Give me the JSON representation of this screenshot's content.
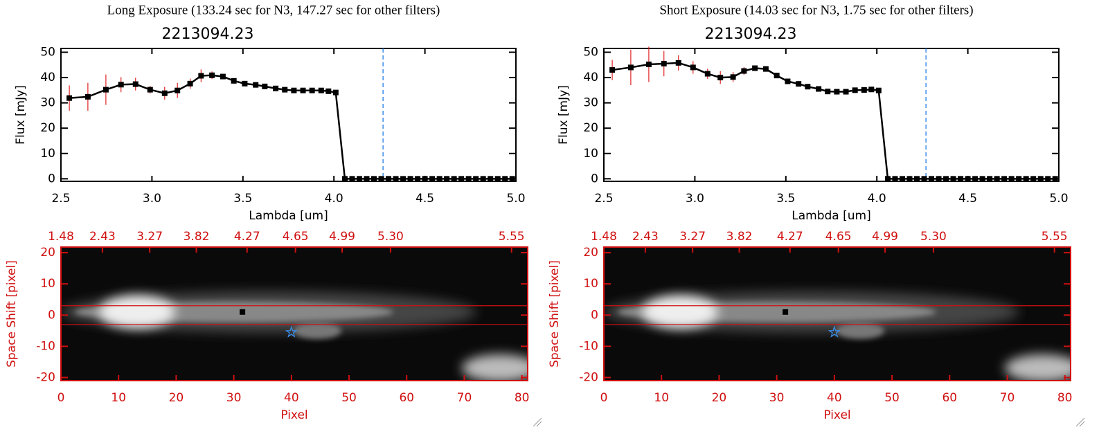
{
  "chart_data": [
    {
      "type": "spectrum",
      "heading": "Long Exposure (133.24 sec for N3, 147.27 sec for other filters)",
      "title": "2213094.23",
      "xlabel": "Lambda [um]",
      "ylabel": "Flux [mJy]",
      "x": [
        2.546,
        2.648,
        2.747,
        2.83,
        2.91,
        2.99,
        3.07,
        3.14,
        3.21,
        3.27,
        3.33,
        3.39,
        3.45,
        3.51,
        3.57,
        3.62,
        3.68,
        3.73,
        3.78,
        3.83,
        3.88,
        3.93,
        3.97,
        4.01,
        4.06,
        4.1,
        4.14,
        4.18,
        4.22,
        4.26,
        4.3,
        4.34,
        4.38,
        4.42,
        4.46,
        4.5,
        4.54,
        4.58,
        4.62,
        4.66,
        4.7,
        4.74,
        4.78,
        4.82,
        4.86,
        4.9,
        4.94,
        4.98
      ],
      "values": [
        31.9,
        32.4,
        35.2,
        37.2,
        37.4,
        35.2,
        33.8,
        34.9,
        37.6,
        40.7,
        40.9,
        40.4,
        38.7,
        37.6,
        37.1,
        36.5,
        35.7,
        35.2,
        34.9,
        34.9,
        34.9,
        34.9,
        34.6,
        34.1,
        0,
        0,
        0,
        0,
        0,
        0,
        0,
        0,
        0,
        0,
        0,
        0,
        0,
        0,
        0,
        0,
        0,
        0,
        0,
        0,
        0,
        0,
        0,
        0
      ],
      "errors": [
        5,
        5.5,
        6,
        3,
        2.5,
        1.5,
        2.5,
        3,
        2,
        2.5,
        1.5,
        1,
        0.5,
        0.5,
        0.3,
        0.3,
        0.3,
        0.3,
        0.3,
        0.3,
        0.3,
        0.3,
        0.3,
        0.3,
        0,
        0,
        0,
        0,
        0,
        0,
        0,
        0,
        0,
        0,
        0,
        0,
        0,
        0,
        0,
        0,
        0,
        0,
        0,
        0,
        0,
        0,
        0,
        0
      ],
      "color": "#000000",
      "error_color": "#e02020",
      "vline": 4.27,
      "vline_color": "#3b8ee8",
      "xlim": [
        2.5,
        5.0
      ],
      "xticks": [
        2.5,
        {
          "value": 3,
          "label": "3.0"
        },
        3.5,
        {
          "value": 4,
          "label": "4.0"
        },
        4.5,
        {
          "value": 5,
          "label": "5.0"
        }
      ],
      "ylim": [
        -1,
        51.5
      ],
      "yticks": [
        0,
        10,
        20,
        30,
        40,
        50
      ]
    },
    {
      "type": "image",
      "xlabel": "Pixel",
      "ylabel": "Space Shift [pixel]",
      "xlim": [
        0,
        81
      ],
      "xticks": [
        0,
        10,
        20,
        30,
        40,
        50,
        60,
        70,
        80
      ],
      "ylim": [
        -21,
        21.8
      ],
      "yticks": [
        -20,
        -10,
        0,
        10,
        20
      ],
      "top_ticks": [
        {
          "value": 0,
          "label": "1.48"
        },
        {
          "value": 7.2,
          "label": "2.43"
        },
        {
          "value": 15.4,
          "label": "3.27"
        },
        {
          "value": 23.5,
          "label": "3.82"
        },
        {
          "value": 32.3,
          "label": "4.27"
        },
        {
          "value": 40.7,
          "label": "4.65"
        },
        {
          "value": 48.8,
          "label": "4.99"
        },
        {
          "value": 57.2,
          "label": "5.30"
        },
        {
          "value": 78.2,
          "label": "5.55"
        }
      ],
      "hlines": [
        3,
        -3
      ],
      "center": [
        31.5,
        1
      ],
      "star": [
        40,
        -5.5
      ],
      "axis_color": "#d01010"
    },
    {
      "type": "spectrum",
      "heading": "Short Exposure (14.03 sec for N3, 1.75 sec for other filters)",
      "title": "2213094.23",
      "xlabel": "Lambda [um]",
      "ylabel": "Flux [mJy]",
      "x": [
        2.546,
        2.648,
        2.747,
        2.83,
        2.91,
        2.99,
        3.07,
        3.14,
        3.21,
        3.27,
        3.33,
        3.39,
        3.45,
        3.51,
        3.57,
        3.62,
        3.68,
        3.73,
        3.78,
        3.83,
        3.88,
        3.93,
        3.97,
        4.01,
        4.06,
        4.1,
        4.14,
        4.18,
        4.22,
        4.26,
        4.3,
        4.34,
        4.38,
        4.42,
        4.46,
        4.5,
        4.54,
        4.58,
        4.62,
        4.66,
        4.7,
        4.74,
        4.78,
        4.82,
        4.86,
        4.9,
        4.94,
        4.98
      ],
      "values": [
        43,
        44,
        45.2,
        45.5,
        45.8,
        44,
        41.5,
        40,
        40.2,
        42.6,
        43.7,
        43.4,
        40.8,
        38.5,
        37.5,
        36.4,
        35.5,
        34.5,
        34.4,
        34.4,
        35,
        35.1,
        35.3,
        34.9,
        0,
        0,
        0,
        0,
        0,
        0,
        0,
        0,
        0,
        0,
        0,
        0,
        0,
        0,
        0,
        0,
        0,
        0,
        0,
        0,
        0,
        0,
        0,
        0
      ],
      "errors": [
        4,
        7,
        7,
        5,
        3,
        2.5,
        2,
        2.5,
        2,
        1.5,
        1,
        0.7,
        0.5,
        0.5,
        0.3,
        0.3,
        0.3,
        0.3,
        0.3,
        0.3,
        0.3,
        0.3,
        0.3,
        0.3,
        0,
        0,
        0,
        0,
        0,
        0,
        0,
        0,
        0,
        0,
        0,
        0,
        0,
        0,
        0,
        0,
        0,
        0,
        0,
        0,
        0,
        0,
        0,
        0
      ],
      "color": "#000000",
      "error_color": "#e02020",
      "vline": 4.27,
      "vline_color": "#3b8ee8",
      "xlim": [
        2.5,
        5.0
      ],
      "xticks": [
        2.5,
        {
          "value": 3,
          "label": "3.0"
        },
        3.5,
        {
          "value": 4,
          "label": "4.0"
        },
        4.5,
        {
          "value": 5,
          "label": "5.0"
        }
      ],
      "ylim": [
        -1,
        51.5
      ],
      "yticks": [
        0,
        10,
        20,
        30,
        40,
        50
      ]
    },
    {
      "type": "image",
      "xlabel": "Pixel",
      "ylabel": "Space Shift [pixel]",
      "xlim": [
        0,
        81
      ],
      "xticks": [
        0,
        10,
        20,
        30,
        40,
        50,
        60,
        70,
        80
      ],
      "ylim": [
        -21,
        21.8
      ],
      "yticks": [
        -20,
        -10,
        0,
        10,
        20
      ],
      "top_ticks": [
        {
          "value": 0,
          "label": "1.48"
        },
        {
          "value": 7.2,
          "label": "2.43"
        },
        {
          "value": 15.4,
          "label": "3.27"
        },
        {
          "value": 23.5,
          "label": "3.82"
        },
        {
          "value": 32.3,
          "label": "4.27"
        },
        {
          "value": 40.7,
          "label": "4.65"
        },
        {
          "value": 48.8,
          "label": "4.99"
        },
        {
          "value": 57.2,
          "label": "5.30"
        },
        {
          "value": 78.2,
          "label": "5.55"
        }
      ],
      "hlines": [
        3,
        -3
      ],
      "center": [
        31.5,
        1
      ],
      "star": [
        40,
        -5.5
      ],
      "axis_color": "#d01010"
    }
  ]
}
